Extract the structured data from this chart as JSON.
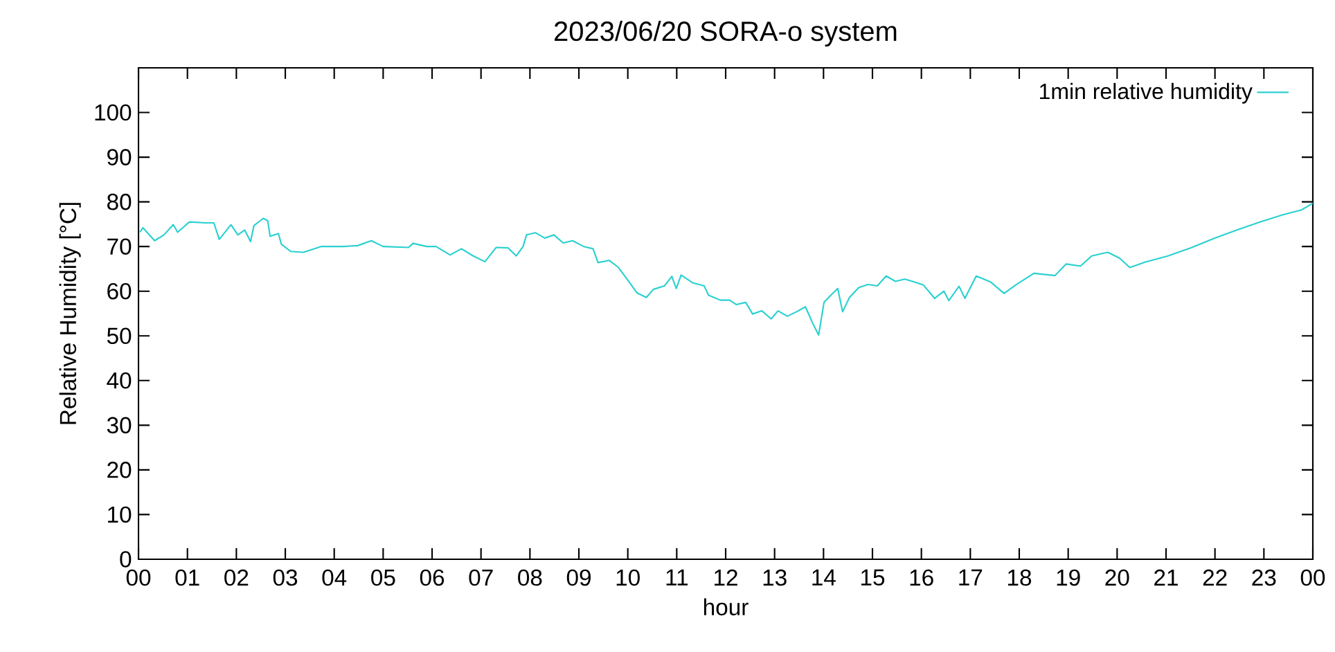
{
  "chart_data": {
    "type": "line",
    "title": "2023/06/20 SORA-o system",
    "xlabel": "hour",
    "ylabel": "Relative Humidity [°C]",
    "x": [
      0.03,
      0.09,
      0.33,
      0.52,
      0.71,
      0.8,
      1.04,
      1.37,
      1.54,
      1.65,
      1.89,
      2.03,
      2.17,
      2.29,
      2.36,
      2.55,
      2.64,
      2.69,
      2.86,
      2.92,
      3.11,
      3.37,
      3.73,
      4.2,
      4.48,
      4.76,
      5.0,
      5.52,
      5.61,
      5.89,
      6.08,
      6.37,
      6.6,
      6.84,
      7.08,
      7.31,
      7.55,
      7.72,
      7.86,
      7.93,
      8.11,
      8.3,
      8.49,
      8.68,
      8.87,
      9.1,
      9.29,
      9.39,
      9.62,
      9.81,
      10.05,
      10.19,
      10.38,
      10.52,
      10.75,
      10.9,
      10.99,
      11.09,
      11.32,
      11.56,
      11.65,
      11.89,
      12.08,
      12.22,
      12.41,
      12.55,
      12.74,
      12.93,
      13.07,
      13.26,
      13.45,
      13.63,
      13.78,
      13.9,
      14.01,
      14.15,
      14.29,
      14.39,
      14.53,
      14.72,
      14.91,
      15.1,
      15.28,
      15.47,
      15.66,
      15.85,
      16.04,
      16.27,
      16.46,
      16.56,
      16.77,
      16.89,
      17.12,
      17.41,
      17.69,
      17.93,
      18.3,
      18.73,
      18.96,
      19.25,
      19.48,
      19.81,
      20.05,
      20.26,
      20.57,
      21.04,
      21.51,
      21.98,
      22.45,
      22.92,
      23.39,
      23.77,
      24.0
    ],
    "series": [
      {
        "name": "1min relative humidity",
        "color": "#2ad0d0",
        "values": [
          73.2,
          74.2,
          71.3,
          72.6,
          74.9,
          73.2,
          75.5,
          75.3,
          75.3,
          71.6,
          74.9,
          72.6,
          73.7,
          71.1,
          74.7,
          76.3,
          75.8,
          72.3,
          72.9,
          70.5,
          68.9,
          68.7,
          70.0,
          70.0,
          70.2,
          71.3,
          70.0,
          69.8,
          70.7,
          70.0,
          70.0,
          68.1,
          69.5,
          67.9,
          66.6,
          69.8,
          69.7,
          67.9,
          70.0,
          72.6,
          73.1,
          71.9,
          72.6,
          70.8,
          71.3,
          70.0,
          69.5,
          66.4,
          66.9,
          65.3,
          61.7,
          59.6,
          58.6,
          60.4,
          61.2,
          63.3,
          60.6,
          63.6,
          61.9,
          61.2,
          59.1,
          58.0,
          58.0,
          57.0,
          57.5,
          54.9,
          55.6,
          53.8,
          55.6,
          54.4,
          55.4,
          56.5,
          52.8,
          50.2,
          57.5,
          59.1,
          60.6,
          55.4,
          58.6,
          60.8,
          61.5,
          61.2,
          63.4,
          62.2,
          62.7,
          62.1,
          61.4,
          58.4,
          60.0,
          57.9,
          61.1,
          58.4,
          63.4,
          62.1,
          59.5,
          61.4,
          64.0,
          63.5,
          66.1,
          65.6,
          67.9,
          68.7,
          67.4,
          65.3,
          66.5,
          67.9,
          69.7,
          71.8,
          73.7,
          75.5,
          77.1,
          78.2,
          79.7
        ]
      }
    ],
    "xlim": [
      0,
      24
    ],
    "xticks": [
      {
        "value": 0,
        "label": "00"
      },
      {
        "value": 1,
        "label": "01"
      },
      {
        "value": 2,
        "label": "02"
      },
      {
        "value": 3,
        "label": "03"
      },
      {
        "value": 4,
        "label": "04"
      },
      {
        "value": 5,
        "label": "05"
      },
      {
        "value": 6,
        "label": "06"
      },
      {
        "value": 7,
        "label": "07"
      },
      {
        "value": 8,
        "label": "08"
      },
      {
        "value": 9,
        "label": "09"
      },
      {
        "value": 10,
        "label": "10"
      },
      {
        "value": 11,
        "label": "11"
      },
      {
        "value": 12,
        "label": "12"
      },
      {
        "value": 13,
        "label": "13"
      },
      {
        "value": 14,
        "label": "14"
      },
      {
        "value": 15,
        "label": "15"
      },
      {
        "value": 16,
        "label": "16"
      },
      {
        "value": 17,
        "label": "17"
      },
      {
        "value": 18,
        "label": "18"
      },
      {
        "value": 19,
        "label": "19"
      },
      {
        "value": 20,
        "label": "20"
      },
      {
        "value": 21,
        "label": "21"
      },
      {
        "value": 22,
        "label": "22"
      },
      {
        "value": 23,
        "label": "23"
      },
      {
        "value": 24,
        "label": "00"
      }
    ],
    "ylim": [
      0,
      110
    ],
    "yticks": [
      0,
      10,
      20,
      30,
      40,
      50,
      60,
      70,
      80,
      90,
      100
    ],
    "legend": "top right"
  }
}
